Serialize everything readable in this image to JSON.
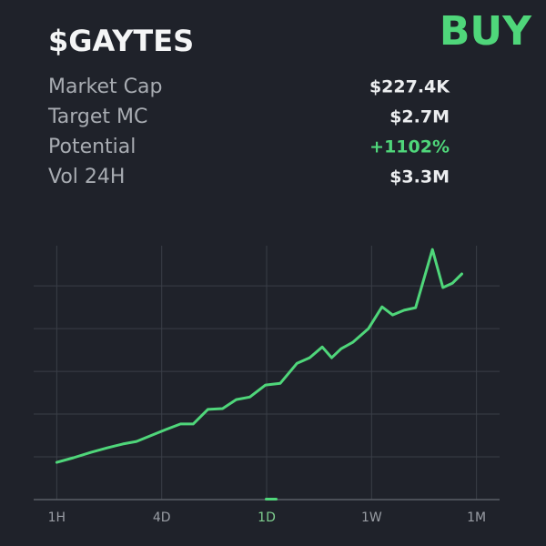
{
  "header": {
    "title": "$GAYTES",
    "action": "BUY"
  },
  "stats": [
    {
      "label": "Market Cap",
      "value": "$227.4K"
    },
    {
      "label": "Target MC",
      "value": "$2.7M"
    },
    {
      "label": "Potential",
      "value": "+1102%"
    },
    {
      "label": "Vol 24H",
      "value": "$3.3M"
    }
  ],
  "chart_data": {
    "type": "line",
    "color": "#4fd67a",
    "grid": true,
    "x": [
      0,
      0.16,
      0.33,
      0.48,
      0.63,
      0.76,
      0.89,
      1.04,
      1.18,
      1.3,
      1.44,
      1.58,
      1.71,
      1.84,
      1.99,
      2.13,
      2.29,
      2.41,
      2.53,
      2.62,
      2.71,
      2.82,
      2.97,
      3.1,
      3.2,
      3.31,
      3.42,
      3.58,
      3.68,
      3.77,
      3.86
    ],
    "values": [
      0.87,
      0.98,
      1.11,
      1.21,
      1.3,
      1.36,
      1.49,
      1.64,
      1.77,
      1.77,
      2.11,
      2.13,
      2.34,
      2.4,
      2.68,
      2.72,
      3.19,
      3.32,
      3.57,
      3.32,
      3.53,
      3.68,
      4.0,
      4.51,
      4.32,
      4.43,
      4.49,
      5.85,
      4.96,
      5.06,
      5.28
    ],
    "xlim": [
      -0.22,
      4.22
    ],
    "xticks": [
      {
        "value": 0,
        "label": "1H"
      },
      {
        "value": 1,
        "label": "4D"
      },
      {
        "value": 2,
        "label": "1D"
      },
      {
        "value": 3,
        "label": "1W"
      },
      {
        "value": 4,
        "label": "1M"
      }
    ],
    "selected_x": 2,
    "ylim": [
      0,
      5.94
    ],
    "yticks": [
      1,
      2,
      3,
      4,
      5
    ]
  }
}
